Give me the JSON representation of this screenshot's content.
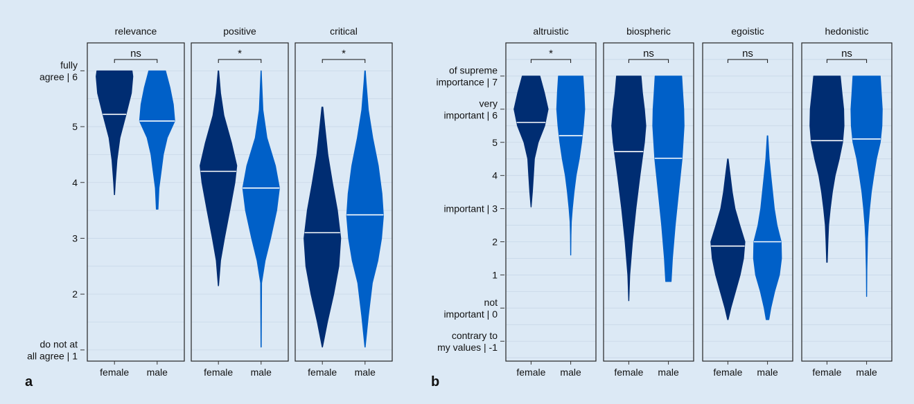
{
  "colors": {
    "female": "#002d72",
    "male": "#0060c8",
    "background": "#dce9f5",
    "median": "#ffffff",
    "grid": "#c8d8e8"
  },
  "panel_labels": {
    "a": "a",
    "b": "b"
  },
  "chart_data": [
    {
      "type": "violin",
      "id": "a",
      "categories": [
        "female",
        "male"
      ],
      "ylim": [
        0.8,
        6.5
      ],
      "y_ticks": [
        {
          "value": 1,
          "label": [
            "do not at",
            "all agree | 1"
          ]
        },
        {
          "value": 2,
          "label": [
            "2"
          ]
        },
        {
          "value": 3,
          "label": [
            "3"
          ]
        },
        {
          "value": 4,
          "label": [
            "4"
          ]
        },
        {
          "value": 5,
          "label": [
            "5"
          ]
        },
        {
          "value": 6,
          "label": [
            "fully",
            "agree | 6"
          ]
        }
      ],
      "facets": [
        {
          "title": "relevance",
          "significance": "ns",
          "series": [
            {
              "name": "female",
              "median": 5.22,
              "shape": [
                [
                  3.78,
                  0.01
                ],
                [
                  4.0,
                  0.05
                ],
                [
                  4.4,
                  0.14
                ],
                [
                  4.8,
                  0.3
                ],
                [
                  5.2,
                  0.62
                ],
                [
                  5.6,
                  0.92
                ],
                [
                  5.9,
                  1.0
                ],
                [
                  6.0,
                  0.96
                ]
              ]
            },
            {
              "name": "male",
              "median": 5.1,
              "shape": [
                [
                  3.52,
                  0.05
                ],
                [
                  3.6,
                  0.06
                ],
                [
                  3.9,
                  0.1
                ],
                [
                  4.2,
                  0.22
                ],
                [
                  4.5,
                  0.34
                ],
                [
                  4.8,
                  0.55
                ],
                [
                  5.1,
                  0.96
                ],
                [
                  5.4,
                  0.88
                ],
                [
                  5.7,
                  0.7
                ],
                [
                  6.0,
                  0.46
                ]
              ]
            }
          ]
        },
        {
          "title": "positive",
          "significance": "*",
          "series": [
            {
              "name": "female",
              "median": 4.2,
              "shape": [
                [
                  2.15,
                  0.01
                ],
                [
                  2.6,
                  0.12
                ],
                [
                  3.0,
                  0.33
                ],
                [
                  3.5,
                  0.62
                ],
                [
                  4.0,
                  0.9
                ],
                [
                  4.3,
                  1.0
                ],
                [
                  4.7,
                  0.72
                ],
                [
                  5.2,
                  0.3
                ],
                [
                  5.6,
                  0.12
                ],
                [
                  6.0,
                  0.02
                ]
              ]
            },
            {
              "name": "male",
              "median": 3.9,
              "shape": [
                [
                  1.05,
                  0.01
                ],
                [
                  1.5,
                  0.02
                ],
                [
                  2.2,
                  0.03
                ],
                [
                  2.6,
                  0.22
                ],
                [
                  3.0,
                  0.52
                ],
                [
                  3.5,
                  0.85
                ],
                [
                  3.9,
                  1.0
                ],
                [
                  4.3,
                  0.78
                ],
                [
                  4.8,
                  0.32
                ],
                [
                  5.3,
                  0.1
                ],
                [
                  6.0,
                  0.01
                ]
              ]
            }
          ]
        },
        {
          "title": "critical",
          "significance": "*",
          "series": [
            {
              "name": "female",
              "median": 3.1,
              "shape": [
                [
                  1.05,
                  0.01
                ],
                [
                  1.5,
                  0.28
                ],
                [
                  2.0,
                  0.62
                ],
                [
                  2.5,
                  0.9
                ],
                [
                  3.0,
                  1.0
                ],
                [
                  3.5,
                  0.82
                ],
                [
                  4.0,
                  0.55
                ],
                [
                  4.5,
                  0.3
                ],
                [
                  5.0,
                  0.14
                ],
                [
                  5.35,
                  0.03
                ]
              ]
            },
            {
              "name": "male",
              "median": 3.42,
              "shape": [
                [
                  1.05,
                  0.01
                ],
                [
                  1.6,
                  0.18
                ],
                [
                  2.2,
                  0.4
                ],
                [
                  2.6,
                  0.7
                ],
                [
                  3.0,
                  0.9
                ],
                [
                  3.4,
                  1.0
                ],
                [
                  3.8,
                  0.92
                ],
                [
                  4.3,
                  0.72
                ],
                [
                  4.8,
                  0.42
                ],
                [
                  5.3,
                  0.18
                ],
                [
                  5.8,
                  0.06
                ],
                [
                  6.0,
                  0.02
                ]
              ]
            }
          ]
        }
      ]
    },
    {
      "type": "violin",
      "id": "b",
      "categories": [
        "female",
        "male"
      ],
      "ylim": [
        -1.6,
        8.0
      ],
      "y_ticks": [
        {
          "value": -1,
          "label": [
            "contrary to",
            "my values | -1"
          ]
        },
        {
          "value": 0,
          "label": [
            "not",
            "important | 0"
          ]
        },
        {
          "value": 1,
          "label": [
            "1"
          ]
        },
        {
          "value": 2,
          "label": [
            "2"
          ]
        },
        {
          "value": 3,
          "label": [
            "important | 3"
          ]
        },
        {
          "value": 4,
          "label": [
            "4"
          ]
        },
        {
          "value": 5,
          "label": [
            "5"
          ]
        },
        {
          "value": 6,
          "label": [
            "very",
            "important | 6"
          ]
        },
        {
          "value": 7,
          "label": [
            "of supreme",
            "importance | 7"
          ]
        }
      ],
      "facets": [
        {
          "title": "altruistic",
          "significance": "*",
          "series": [
            {
              "name": "female",
              "median": 5.6,
              "shape": [
                [
                  3.05,
                  0.01
                ],
                [
                  3.5,
                  0.08
                ],
                [
                  4.0,
                  0.14
                ],
                [
                  4.5,
                  0.2
                ],
                [
                  5.0,
                  0.42
                ],
                [
                  5.5,
                  0.8
                ],
                [
                  6.0,
                  1.0
                ],
                [
                  6.5,
                  0.78
                ],
                [
                  7.0,
                  0.52
                ]
              ]
            },
            {
              "name": "male",
              "median": 5.2,
              "shape": [
                [
                  1.6,
                  0.01
                ],
                [
                  2.2,
                  0.02
                ],
                [
                  2.6,
                  0.04
                ],
                [
                  3.0,
                  0.1
                ],
                [
                  3.5,
                  0.2
                ],
                [
                  4.0,
                  0.32
                ],
                [
                  4.5,
                  0.5
                ],
                [
                  5.0,
                  0.64
                ],
                [
                  5.5,
                  0.75
                ],
                [
                  6.0,
                  0.82
                ],
                [
                  6.5,
                  0.78
                ],
                [
                  7.0,
                  0.72
                ]
              ]
            }
          ]
        },
        {
          "title": "biospheric",
          "significance": "ns",
          "series": [
            {
              "name": "female",
              "median": 4.72,
              "shape": [
                [
                  0.22,
                  0.01
                ],
                [
                  1.0,
                  0.06
                ],
                [
                  2.0,
                  0.22
                ],
                [
                  3.0,
                  0.42
                ],
                [
                  4.0,
                  0.66
                ],
                [
                  5.0,
                  0.92
                ],
                [
                  5.5,
                  1.0
                ],
                [
                  6.0,
                  0.92
                ],
                [
                  6.5,
                  0.8
                ],
                [
                  7.0,
                  0.72
                ]
              ]
            },
            {
              "name": "male",
              "median": 4.52,
              "shape": [
                [
                  0.8,
                  0.16
                ],
                [
                  1.5,
                  0.24
                ],
                [
                  2.5,
                  0.4
                ],
                [
                  3.5,
                  0.6
                ],
                [
                  4.5,
                  0.8
                ],
                [
                  5.5,
                  0.92
                ],
                [
                  6.0,
                  0.9
                ],
                [
                  6.5,
                  0.84
                ],
                [
                  7.0,
                  0.78
                ]
              ]
            }
          ]
        },
        {
          "title": "egoistic",
          "significance": "ns",
          "series": [
            {
              "name": "female",
              "median": 1.87,
              "shape": [
                [
                  -0.35,
                  0.02
                ],
                [
                  0.0,
                  0.18
                ],
                [
                  0.5,
                  0.45
                ],
                [
                  1.0,
                  0.72
                ],
                [
                  1.5,
                  0.92
                ],
                [
                  2.0,
                  1.0
                ],
                [
                  2.5,
                  0.7
                ],
                [
                  3.0,
                  0.42
                ],
                [
                  3.5,
                  0.26
                ],
                [
                  4.0,
                  0.14
                ],
                [
                  4.5,
                  0.02
                ]
              ]
            },
            {
              "name": "male",
              "median": 2.0,
              "shape": [
                [
                  -0.35,
                  0.08
                ],
                [
                  0.0,
                  0.2
                ],
                [
                  0.5,
                  0.42
                ],
                [
                  1.0,
                  0.7
                ],
                [
                  1.5,
                  0.82
                ],
                [
                  2.0,
                  0.8
                ],
                [
                  2.5,
                  0.56
                ],
                [
                  3.0,
                  0.4
                ],
                [
                  3.5,
                  0.3
                ],
                [
                  4.0,
                  0.2
                ],
                [
                  4.5,
                  0.1
                ],
                [
                  5.2,
                  0.02
                ]
              ]
            }
          ]
        },
        {
          "title": "hedonistic",
          "significance": "ns",
          "series": [
            {
              "name": "female",
              "median": 5.05,
              "shape": [
                [
                  1.38,
                  0.02
                ],
                [
                  2.0,
                  0.06
                ],
                [
                  2.5,
                  0.1
                ],
                [
                  3.0,
                  0.2
                ],
                [
                  3.5,
                  0.32
                ],
                [
                  4.0,
                  0.48
                ],
                [
                  4.5,
                  0.72
                ],
                [
                  5.0,
                  0.92
                ],
                [
                  5.5,
                  1.0
                ],
                [
                  6.0,
                  0.98
                ],
                [
                  6.5,
                  0.88
                ],
                [
                  7.0,
                  0.78
                ]
              ]
            },
            {
              "name": "male",
              "median": 5.1,
              "shape": [
                [
                  0.35,
                  0.01
                ],
                [
                  1.15,
                  0.02
                ],
                [
                  2.1,
                  0.06
                ],
                [
                  2.5,
                  0.1
                ],
                [
                  3.0,
                  0.18
                ],
                [
                  3.5,
                  0.28
                ],
                [
                  4.0,
                  0.42
                ],
                [
                  4.5,
                  0.58
                ],
                [
                  5.0,
                  0.8
                ],
                [
                  5.5,
                  0.9
                ],
                [
                  6.0,
                  0.92
                ],
                [
                  6.5,
                  0.86
                ],
                [
                  7.0,
                  0.8
                ]
              ]
            }
          ]
        }
      ]
    }
  ]
}
